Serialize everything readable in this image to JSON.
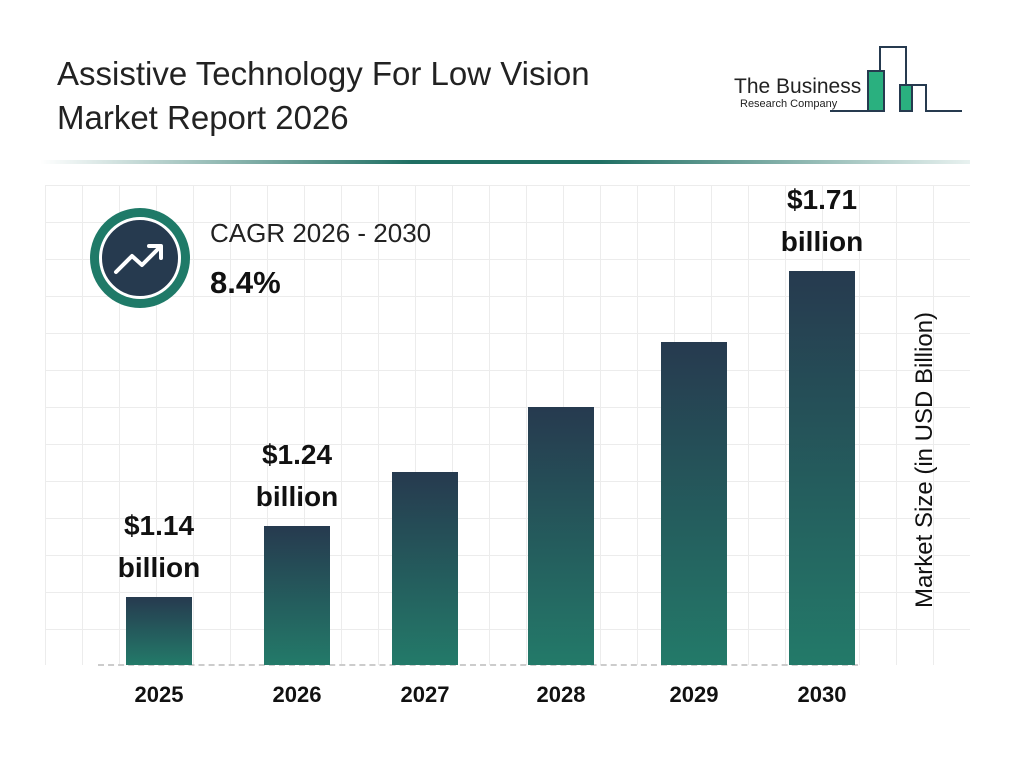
{
  "header": {
    "title_line1": "Assistive Technology For Low Vision",
    "title_line2": "Market Report 2026"
  },
  "logo": {
    "line1": "The Business",
    "line2": "Research Company"
  },
  "cagr": {
    "label": "CAGR 2026 - 2030",
    "value": "8.4%",
    "icon": "trending-up-icon"
  },
  "colors": {
    "bar_top": "#263a4f",
    "bar_bottom": "#237a69",
    "accent": "#1f7a68"
  },
  "chart_data": {
    "type": "bar",
    "title": "Assistive Technology For Low Vision Market Report 2026",
    "ylabel": "Market Size (in USD Billion)",
    "xlabel": "",
    "categories": [
      "2025",
      "2026",
      "2027",
      "2028",
      "2029",
      "2030"
    ],
    "values": [
      1.14,
      1.24,
      1.34,
      1.46,
      1.58,
      1.71
    ],
    "data_labels": [
      {
        "index": 0,
        "line1": "$1.14",
        "line2": "billion"
      },
      {
        "index": 1,
        "line1": "$1.24",
        "line2": "billion"
      },
      {
        "index": 5,
        "line1": "$1.71",
        "line2": "billion"
      }
    ],
    "grid": true,
    "legend": "none"
  }
}
